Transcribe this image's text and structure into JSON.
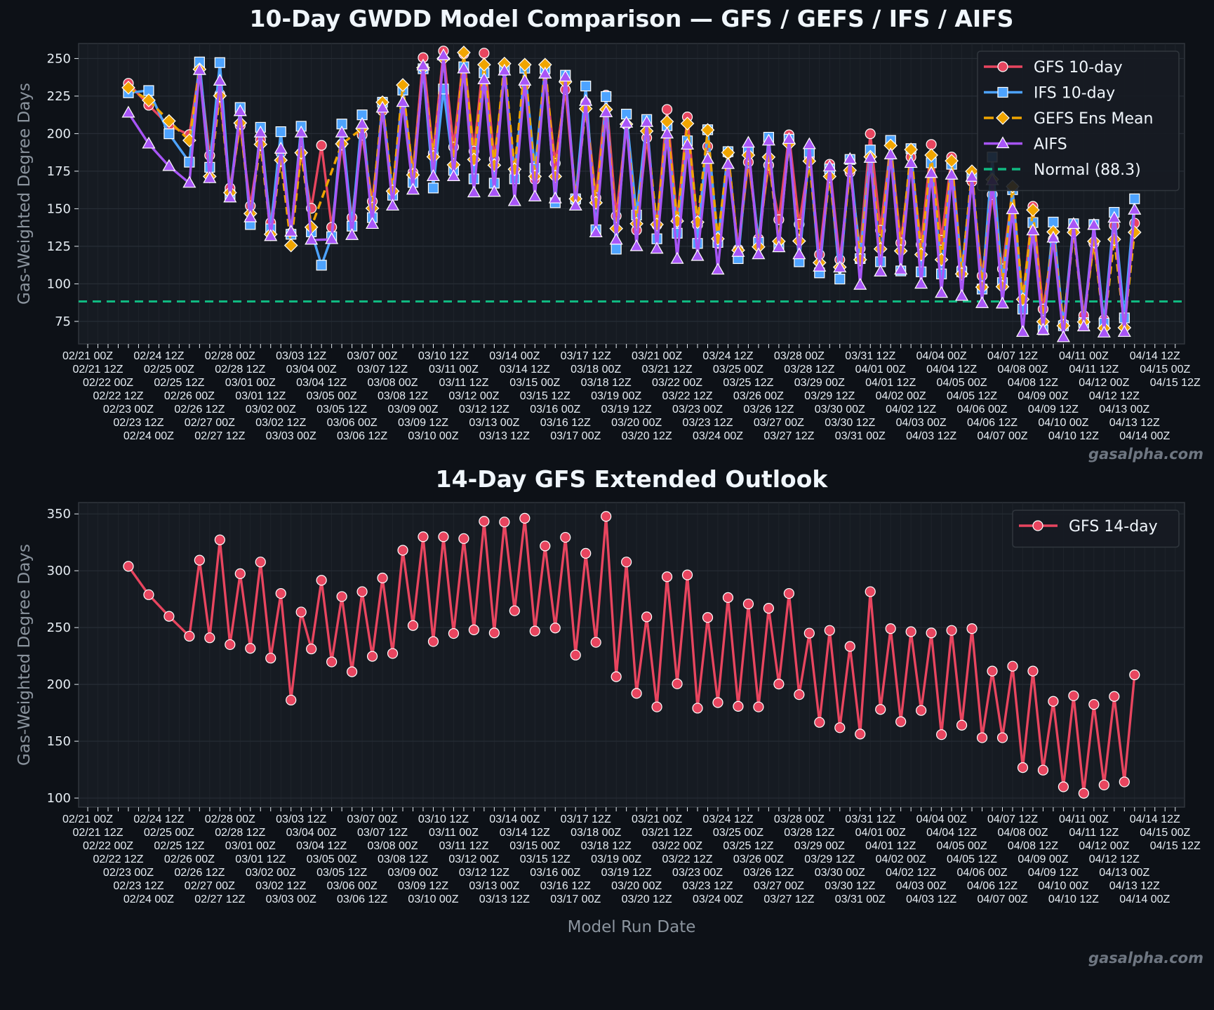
{
  "figure": {
    "watermark": "gasalpha.com",
    "background": "#0d1117",
    "plot_background": "#161b22"
  },
  "chart_data": [
    {
      "type": "line",
      "title": "10-Day GWDD Model Comparison — GFS / GEFS / IFS / AIFS",
      "xlabel": "",
      "ylabel": "Gas-Weighted Degree Days",
      "ylim": [
        60,
        260
      ],
      "y_ticks": [
        75,
        100,
        125,
        150,
        175,
        200,
        225,
        250
      ],
      "grid": true,
      "legend": "top-right",
      "x": [
        "02/23 00Z",
        "02/24 00Z",
        "02/25 00Z",
        "02/26 00Z",
        "02/26 12Z",
        "02/27 00Z",
        "02/27 12Z",
        "02/28 00Z",
        "02/28 12Z",
        "03/01 00Z",
        "03/01 12Z",
        "03/02 00Z",
        "03/02 12Z",
        "03/03 00Z",
        "03/03 12Z",
        "03/04 00Z",
        "03/04 12Z",
        "03/05 00Z",
        "03/05 12Z",
        "03/06 00Z",
        "03/06 12Z",
        "03/07 00Z",
        "03/07 12Z",
        "03/08 00Z",
        "03/08 12Z",
        "03/09 00Z",
        "03/09 12Z",
        "03/10 00Z",
        "03/10 12Z",
        "03/11 00Z",
        "03/11 12Z",
        "03/12 00Z",
        "03/12 12Z",
        "03/13 00Z",
        "03/13 12Z",
        "03/14 00Z",
        "03/14 12Z",
        "03/15 00Z",
        "03/15 12Z",
        "03/16 00Z",
        "03/16 12Z",
        "03/17 00Z",
        "03/17 12Z",
        "03/18 00Z",
        "03/18 12Z",
        "03/19 00Z",
        "03/19 12Z",
        "03/20 00Z",
        "03/20 12Z",
        "03/21 00Z",
        "03/21 12Z",
        "03/22 00Z",
        "03/22 12Z",
        "03/23 00Z",
        "03/23 12Z",
        "03/24 00Z",
        "03/24 12Z",
        "03/25 00Z",
        "03/25 12Z",
        "03/26 00Z",
        "03/26 12Z",
        "03/27 00Z",
        "03/27 12Z",
        "03/28 00Z",
        "03/28 12Z",
        "03/29 00Z",
        "03/29 12Z",
        "03/30 00Z",
        "03/30 12Z",
        "03/31 00Z",
        "03/31 12Z",
        "04/01 00Z",
        "04/01 12Z",
        "04/02 00Z",
        "04/02 12Z",
        "04/03 00Z",
        "04/03 12Z",
        "04/04 00Z",
        "04/04 12Z",
        "04/05 00Z",
        "04/05 12Z",
        "04/06 00Z",
        "04/06 12Z",
        "04/07 00Z",
        "04/07 12Z",
        "04/08 00Z",
        "04/08 12Z",
        "04/09 00Z",
        "04/09 12Z",
        "04/10 00Z",
        "04/10 12Z",
        "04/11 00Z",
        "04/11 12Z",
        "04/12 00Z",
        "04/12 12Z",
        "04/13 00Z",
        "04/13 12Z"
      ],
      "x_tick_labels": [
        "02/21 00Z",
        "02/21 12Z",
        "02/22 00Z",
        "02/22 12Z",
        "02/23 00Z",
        "02/23 12Z",
        "02/24 00Z",
        "02/24 12Z",
        "02/25 00Z",
        "02/25 12Z",
        "02/26 00Z",
        "02/26 12Z",
        "02/27 00Z",
        "02/27 12Z",
        "02/28 00Z",
        "02/28 12Z",
        "03/01 00Z",
        "03/01 12Z",
        "03/02 00Z",
        "03/02 12Z",
        "03/03 00Z",
        "03/03 12Z",
        "03/04 00Z",
        "03/04 12Z",
        "03/05 00Z",
        "03/05 12Z",
        "03/06 00Z",
        "03/06 12Z",
        "03/07 00Z",
        "03/07 12Z",
        "03/08 00Z",
        "03/08 12Z",
        "03/09 00Z",
        "03/09 12Z",
        "03/10 00Z",
        "03/10 12Z",
        "03/11 00Z",
        "03/11 12Z",
        "03/12 00Z",
        "03/12 12Z",
        "03/13 00Z",
        "03/13 12Z",
        "03/14 00Z",
        "03/14 12Z",
        "03/15 00Z",
        "03/15 12Z",
        "03/16 00Z",
        "03/16 12Z",
        "03/17 00Z",
        "03/17 12Z",
        "03/18 00Z",
        "03/18 12Z",
        "03/19 00Z",
        "03/19 12Z",
        "03/20 00Z",
        "03/20 12Z",
        "03/21 00Z",
        "03/21 12Z",
        "03/22 00Z",
        "03/22 12Z",
        "03/23 00Z",
        "03/23 12Z",
        "03/24 00Z",
        "03/24 12Z",
        "03/25 00Z",
        "03/25 12Z",
        "03/26 00Z",
        "03/26 12Z",
        "03/27 00Z",
        "03/27 12Z",
        "03/28 00Z",
        "03/28 12Z",
        "03/29 00Z",
        "03/29 12Z",
        "03/30 00Z",
        "03/30 12Z",
        "03/31 00Z",
        "03/31 12Z",
        "04/01 00Z",
        "04/01 12Z",
        "04/02 00Z",
        "04/02 12Z",
        "04/03 00Z",
        "04/03 12Z",
        "04/04 00Z",
        "04/04 12Z",
        "04/05 00Z",
        "04/05 12Z",
        "04/06 00Z",
        "04/06 12Z",
        "04/07 00Z",
        "04/07 12Z",
        "04/08 00Z",
        "04/08 12Z",
        "04/09 00Z",
        "04/09 12Z",
        "04/10 00Z",
        "04/10 12Z",
        "04/11 00Z",
        "04/11 12Z",
        "04/12 00Z",
        "04/12 12Z",
        "04/13 00Z",
        "04/13 12Z",
        "04/14 00Z",
        "04/14 12Z",
        "04/15 00Z",
        "04/15 12Z"
      ],
      "series": [
        {
          "name": "GFS 10-day",
          "color": "#e8455f",
          "marker": "circle",
          "linestyle": "solid",
          "values": [
            233.5,
            218.9,
            205.3,
            199.3,
            243.9,
            185.5,
            226.3,
            163.8,
            205.3,
            151.9,
            195.9,
            140.8,
            187.1,
            133.7,
            187.1,
            150.3,
            192.2,
            137.7,
            193.2,
            144.1,
            199.0,
            154.9,
            215.2,
            161.4,
            230,
            174.2,
            250.6,
            187,
            255,
            191.1,
            253.1,
            188.4,
            253.6,
            183,
            241.8,
            175.6,
            232.4,
            169.5,
            241.2,
            180.3,
            229.3,
            154.9,
            220.6,
            157.3,
            225.6,
            145.2,
            206,
            135.7,
            197.2,
            139.1,
            216.1,
            142.5,
            211.1,
            139.1,
            191.4,
            126.9,
            187,
            123,
            181,
            130,
            179,
            142.7,
            199.2,
            139.7,
            184.1,
            119.5,
            179.6,
            116.1,
            174.2,
            123.5,
            199.9,
            135.7,
            193.2,
            127.3,
            184.4,
            126.2,
            192.8,
            129,
            184.4,
            110,
            168.2,
            105.3,
            159.4,
            110,
            162.7,
            89.7,
            151.6,
            83.2,
            129.6,
            73.5,
            136,
            78.9,
            126.9,
            76.2,
            138.8,
            76.9,
            140.4
          ]
        },
        {
          "name": "IFS 10-day",
          "color": "#4da3ff",
          "marker": "square",
          "linestyle": "solid",
          "values": [
            227.2,
            228.7,
            199.9,
            181,
            247.7,
            177.6,
            247.3,
            159,
            217.4,
            139.5,
            204.2,
            136.6,
            201.3,
            133,
            204.9,
            134.6,
            112.4,
            131.4,
            206.4,
            138.4,
            212.5,
            144.1,
            220.9,
            159,
            229,
            167.5,
            243.2,
            163.8,
            229.7,
            175.6,
            244.5,
            169.9,
            240.5,
            167,
            243.9,
            169.9,
            243.6,
            176.9,
            243.2,
            154,
            238.9,
            156.6,
            231.7,
            136,
            224.7,
            123.1,
            213,
            145.8,
            209.4,
            130,
            205.3,
            133.7,
            195.2,
            126.9,
            202.6,
            127.6,
            188,
            116.8,
            189.1,
            127.6,
            197.6,
            124.9,
            196.3,
            114.7,
            187.7,
            107.3,
            176.5,
            103.2,
            182.8,
            116.8,
            189.1,
            114.7,
            195.5,
            108.6,
            190,
            108,
            180.6,
            106.6,
            179.6,
            108,
            171.5,
            96.5,
            184.4,
            100.8,
            162.7,
            83.2,
            140.8,
            69.4,
            141.1,
            72.1,
            140,
            74.2,
            139.5,
            73.8,
            147.6,
            77.3,
            156.6
          ]
        },
        {
          "name": "GEFS Ens Mean",
          "color": "#f0a500",
          "marker": "diamond",
          "linestyle": "dashed",
          "values": [
            230.6,
            222.2,
            208.4,
            195.5,
            242.8,
            171.5,
            225.2,
            160.7,
            207.1,
            146.8,
            192.9,
            133,
            182.3,
            125.6,
            187.3,
            137.7,
            null,
            null,
            193.2,
            null,
            203.3,
            150.3,
            220.9,
            161.7,
            232.4,
            172.5,
            243.9,
            184.6,
            250,
            179.2,
            254,
            182.8,
            245.9,
            179,
            246.6,
            176.3,
            245.9,
            171.5,
            245.9,
            171.5,
            234.4,
            156.6,
            216.6,
            154,
            216.1,
            136.8,
            206.3,
            140,
            201.7,
            139.5,
            208,
            141.8,
            206.7,
            141.1,
            202.4,
            130,
            187.4,
            122.4,
            185.7,
            124.6,
            184.4,
            128.3,
            193.2,
            128.5,
            181.7,
            114.1,
            171.5,
            111.1,
            175.6,
            116.1,
            184.6,
            123.2,
            192.1,
            121.9,
            189.4,
            119.5,
            185.7,
            116.1,
            181.9,
            106.6,
            174.9,
            97.8,
            169.5,
            98.1,
            164.8,
            89.7,
            149.2,
            74.8,
            134.6,
            72.1,
            134.3,
            74.6,
            128.3,
            70.5,
            129.6,
            70.8,
            134.3
          ]
        },
        {
          "name": "AIFS",
          "color": "#a855f7",
          "marker": "triangle",
          "linestyle": "solid",
          "values": [
            213.8,
            193.2,
            178.3,
            167.1,
            242.2,
            170.2,
            235.1,
            157.3,
            214.8,
            144.1,
            200.6,
            131.6,
            189.8,
            134.6,
            200.6,
            129.2,
            null,
            129.6,
            200.6,
            132.3,
            206.3,
            139.7,
            217.1,
            151.9,
            220.9,
            162.5,
            245.2,
            171.5,
            252,
            171.5,
            243.2,
            160.7,
            236,
            161.1,
            241.8,
            154.9,
            235.1,
            158,
            239.8,
            156.7,
            237.8,
            151.9,
            221.6,
            134.1,
            214.1,
            129.2,
            207.1,
            124.9,
            207.6,
            123.2,
            199.9,
            116.5,
            192.5,
            118.4,
            183,
            109.3,
            179.6,
            121.1,
            193.8,
            119.5,
            195.2,
            124.2,
            196.3,
            119.5,
            192.8,
            111.3,
            177.9,
            110.7,
            183,
            99.2,
            183.7,
            108,
            186,
            109.3,
            180.3,
            99.9,
            173.6,
            93.8,
            172.5,
            91.8,
            171.1,
            87,
            168.8,
            86.7,
            149.5,
            67.8,
            135.4,
            69.2,
            130.6,
            64.3,
            139.7,
            71.5,
            139.1,
            67.4,
            143.8,
            67.8,
            149.2
          ]
        }
      ],
      "reference_lines": [
        {
          "name": "Normal (88.3)",
          "value": 88.3,
          "color": "#10b981",
          "linestyle": "dashed"
        }
      ]
    },
    {
      "type": "line",
      "title": "14-Day GFS Extended Outlook",
      "xlabel": "Model Run Date",
      "ylabel": "Gas-Weighted Degree Days",
      "ylim": [
        92,
        360
      ],
      "y_ticks": [
        100,
        150,
        200,
        250,
        300,
        350
      ],
      "grid": true,
      "legend": "top-right",
      "series": [
        {
          "name": "GFS 14-day",
          "color": "#e8455f",
          "marker": "circle",
          "linestyle": "solid",
          "values": [
            303.9,
            278.9,
            259.9,
            242.4,
            309.3,
            241,
            327.2,
            235,
            297.4,
            231.7,
            307.7,
            223.1,
            280,
            186.2,
            263.7,
            231.2,
            291.6,
            219.8,
            277.3,
            211.1,
            281.6,
            224.7,
            293.6,
            227.2,
            318,
            251.8,
            329.9,
            237.7,
            329.9,
            244.8,
            328.3,
            248,
            343.5,
            245.3,
            342.9,
            264.8,
            346.2,
            246.9,
            321.8,
            249.6,
            329.4,
            225.8,
            315.3,
            237,
            347.8,
            206.8,
            307.7,
            192.1,
            259.4,
            180.2,
            294.7,
            200.5,
            296.3,
            179.1,
            258.9,
            184,
            276.4,
            180.7,
            270.8,
            180.2,
            267,
            200.3,
            280,
            191,
            245.1,
            166.6,
            247.5,
            161.9,
            233.4,
            156.3,
            281.6,
            178,
            249.1,
            167.2,
            246.4,
            177.1,
            245.3,
            155.8,
            247.5,
            164.1,
            249.1,
            153.1,
            211.7,
            153.1,
            216,
            126.8,
            211.7,
            124.6,
            185.1,
            109.9,
            190,
            104.2,
            182.4,
            111.5,
            189.4,
            114.2,
            208.4
          ]
        }
      ]
    }
  ]
}
